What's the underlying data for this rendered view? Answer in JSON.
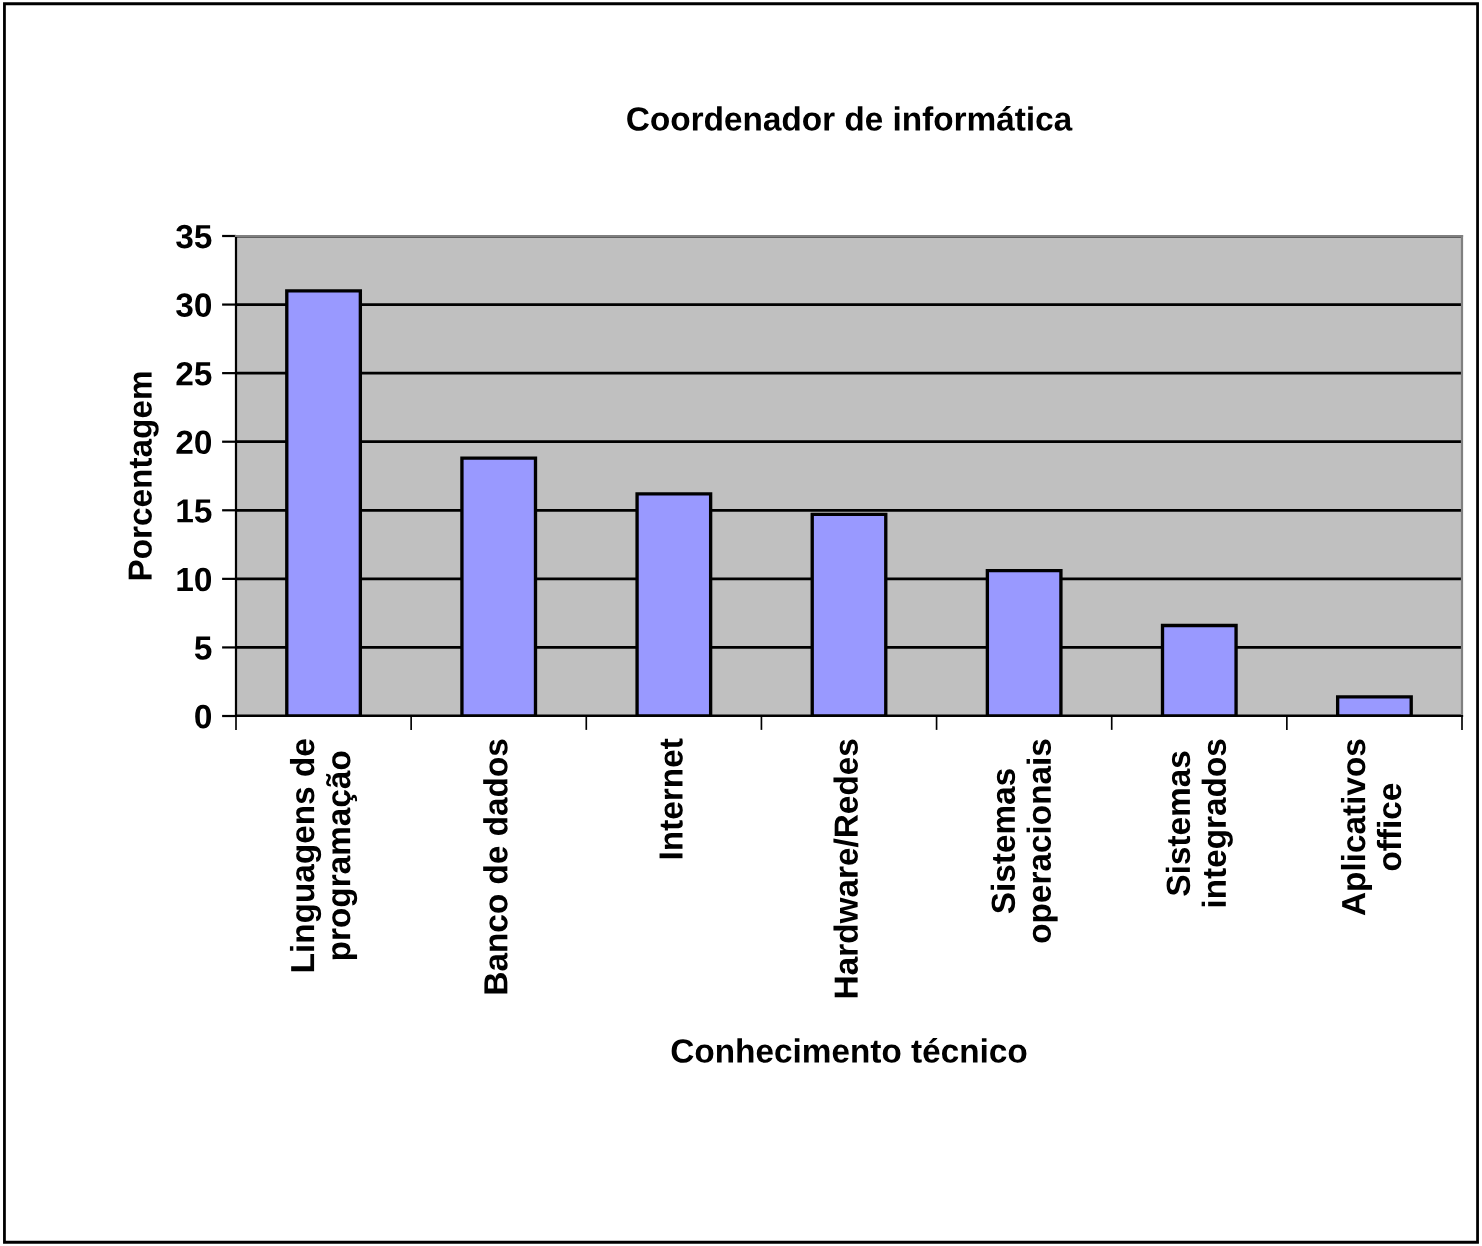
{
  "chart_data": {
    "type": "bar",
    "title": "Coordenador de informática",
    "xlabel": "Conhecimento técnico",
    "ylabel": "Porcentagem",
    "categories": [
      "Linguagens de\nprogramação",
      "Banco de dados",
      "Internet",
      "Hardware/Redes",
      "Sistemas\noperacionais",
      "Sistemas\nintegrados",
      "Aplicativos\noffice"
    ],
    "values": [
      31.0,
      18.8,
      16.2,
      14.7,
      10.6,
      6.6,
      1.4
    ],
    "color": "#9999ff",
    "ylim": [
      0,
      35
    ],
    "yticks": [
      0,
      5,
      10,
      15,
      20,
      25,
      30,
      35
    ],
    "grid": "y",
    "legend": false
  }
}
